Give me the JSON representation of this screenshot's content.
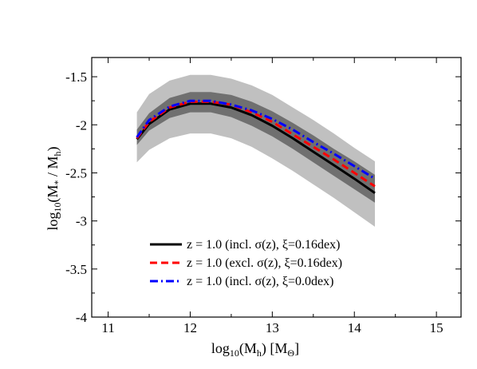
{
  "chart_data": {
    "type": "line",
    "title": "",
    "xlabel": "log10(Mh) [MΘ]",
    "ylabel": "log10(M* / Mh)",
    "xlim": [
      10.8,
      15.3
    ],
    "ylim": [
      -4,
      -1.3
    ],
    "x_ticks": [
      11,
      12,
      13,
      14,
      15
    ],
    "y_ticks": [
      -4,
      -3.5,
      -3,
      -2.5,
      -2,
      -1.5
    ],
    "x_tick_labels": [
      "11",
      "12",
      "13",
      "14",
      "15"
    ],
    "y_tick_labels": [
      "-4",
      "-3.5",
      "-3",
      "-2.5",
      "-2",
      "-1.5"
    ],
    "grid": false,
    "legend_position": "bottom-center",
    "x": [
      11.35,
      11.5,
      11.75,
      12.0,
      12.25,
      12.5,
      12.75,
      13.0,
      13.25,
      13.5,
      13.75,
      14.0,
      14.25
    ],
    "series": [
      {
        "name": "z = 1.0 (incl. σ(z), ξ=0.16dex)",
        "color": "#000000",
        "style": "solid",
        "values": [
          -2.15,
          -1.99,
          -1.84,
          -1.78,
          -1.78,
          -1.82,
          -1.9,
          -2.01,
          -2.14,
          -2.28,
          -2.42,
          -2.56,
          -2.71
        ]
      },
      {
        "name": "z = 1.0 (excl. σ(z), ξ=0.16dex)",
        "color": "#ff0000",
        "style": "dashed",
        "values": [
          -2.14,
          -1.97,
          -1.82,
          -1.76,
          -1.76,
          -1.79,
          -1.87,
          -1.97,
          -2.1,
          -2.23,
          -2.36,
          -2.5,
          -2.64
        ]
      },
      {
        "name": "z = 1.0 (incl. σ(z), ξ=0.0dex)",
        "color": "#0000ff",
        "style": "dashdot",
        "values": [
          -2.13,
          -1.95,
          -1.81,
          -1.75,
          -1.75,
          -1.79,
          -1.85,
          -1.94,
          -2.05,
          -2.18,
          -2.3,
          -2.43,
          -2.56
        ]
      }
    ],
    "bands": [
      {
        "color": "#c0c0c0",
        "upper": [
          -1.87,
          -1.68,
          -1.54,
          -1.48,
          -1.48,
          -1.52,
          -1.59,
          -1.69,
          -1.82,
          -1.95,
          -2.09,
          -2.24,
          -2.38
        ],
        "lower": [
          -2.39,
          -2.26,
          -2.14,
          -2.09,
          -2.09,
          -2.14,
          -2.23,
          -2.35,
          -2.48,
          -2.62,
          -2.76,
          -2.91,
          -3.06
        ]
      },
      {
        "color": "#707070",
        "upper": [
          -2.05,
          -1.88,
          -1.72,
          -1.66,
          -1.66,
          -1.69,
          -1.76,
          -1.86,
          -1.98,
          -2.11,
          -2.25,
          -2.38,
          -2.52
        ],
        "lower": [
          -2.21,
          -2.06,
          -1.93,
          -1.87,
          -1.87,
          -1.92,
          -2.01,
          -2.12,
          -2.25,
          -2.39,
          -2.53,
          -2.67,
          -2.81
        ]
      }
    ]
  }
}
